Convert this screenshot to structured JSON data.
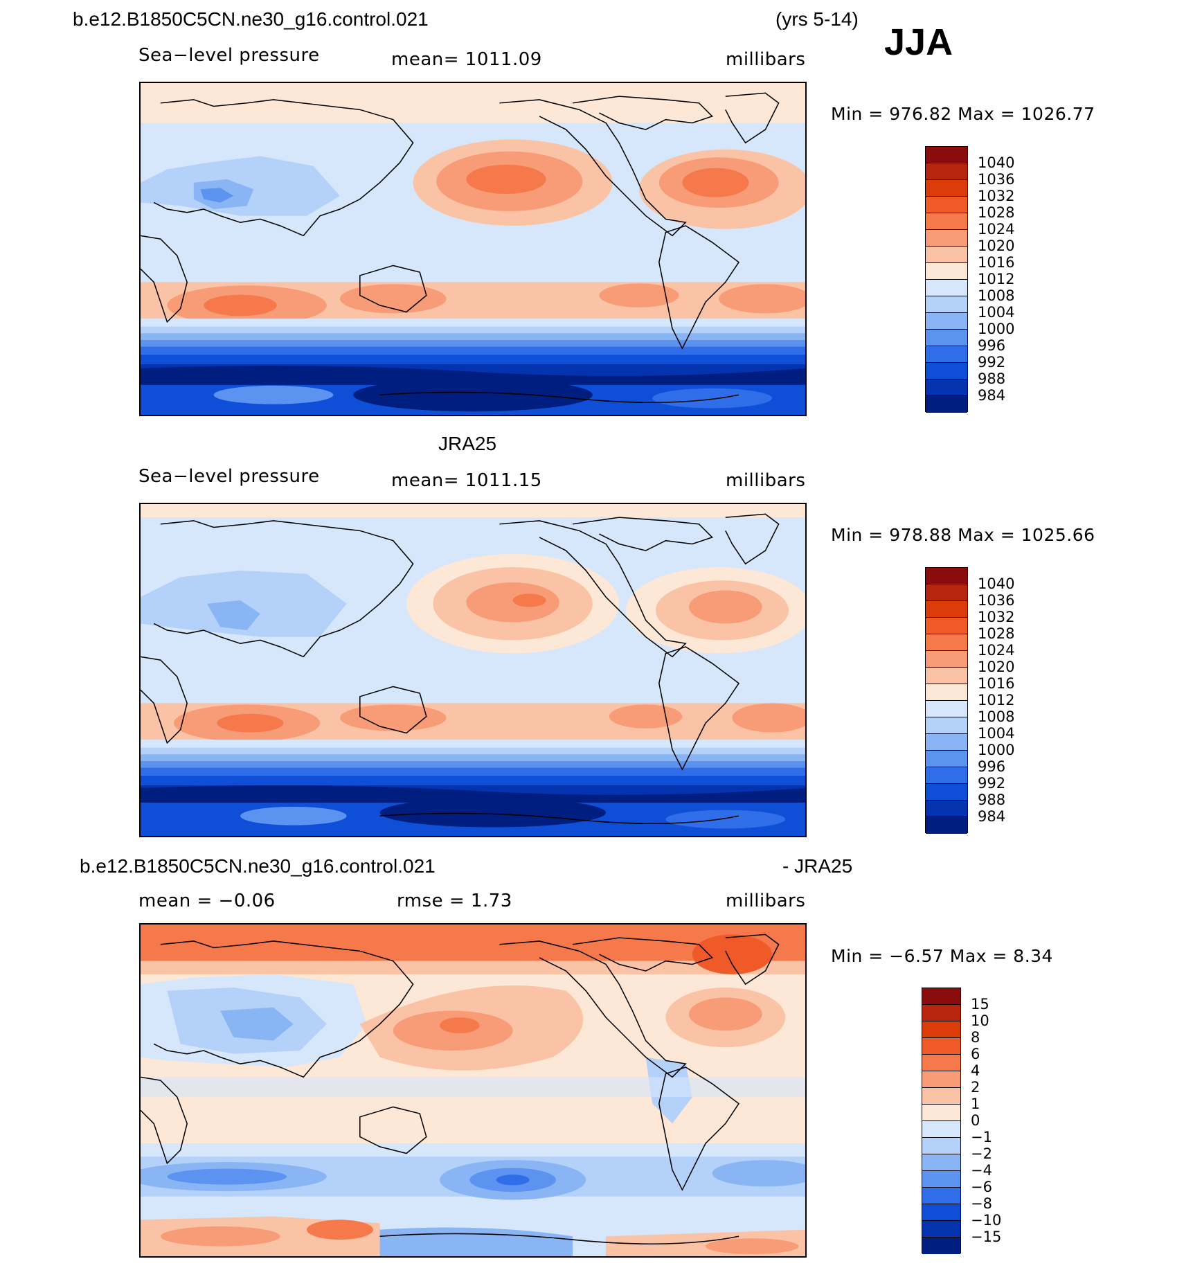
{
  "header": {
    "case_title": "b.e12.B1850C5CN.ne30_g16.control.021",
    "years": "(yrs 5-14)",
    "season": "JJA"
  },
  "panels": [
    {
      "id": "model",
      "left_label": "Sea−level pressure",
      "center_label": "mean=  1011.09",
      "units": "millibars",
      "minmax": "Min  =  976.82  Max  =  1026.77",
      "colorbar": {
        "labels": [
          "1040",
          "1036",
          "1032",
          "1028",
          "1024",
          "1020",
          "1016",
          "1012",
          "1008",
          "1004",
          "1000",
          "996",
          "992",
          "988",
          "984"
        ],
        "colors": [
          "#8b0c0c",
          "#b8250f",
          "#dc3b0a",
          "#f05a28",
          "#f5794b",
          "#f89c78",
          "#fbc3a5",
          "#fde7d6",
          "#d6e6fb",
          "#b4d1fa",
          "#8ab5f5",
          "#5c93f0",
          "#2f6ee8",
          "#0f4ed6",
          "#0433b0",
          "#001e80"
        ]
      }
    },
    {
      "id": "obs",
      "title": "JRA25",
      "left_label": "Sea−level pressure",
      "center_label": "mean=  1011.15",
      "units": "millibars",
      "minmax": "Min  =  978.88  Max  =  1025.66",
      "colorbar": {
        "labels": [
          "1040",
          "1036",
          "1032",
          "1028",
          "1024",
          "1020",
          "1016",
          "1012",
          "1008",
          "1004",
          "1000",
          "996",
          "992",
          "988",
          "984"
        ],
        "colors": [
          "#8b0c0c",
          "#b8250f",
          "#dc3b0a",
          "#f05a28",
          "#f5794b",
          "#f89c78",
          "#fbc3a5",
          "#fde7d6",
          "#d6e6fb",
          "#b4d1fa",
          "#8ab5f5",
          "#5c93f0",
          "#2f6ee8",
          "#0f4ed6",
          "#0433b0",
          "#001e80"
        ]
      }
    },
    {
      "id": "diff",
      "title_left": "b.e12.B1850C5CN.ne30_g16.control.021",
      "title_right": "- JRA25",
      "left_label": "mean  =    −0.06",
      "center_label": "rmse  =     1.73",
      "units": "millibars",
      "minmax": "Min  =    −6.57  Max  =      8.34",
      "colorbar": {
        "labels": [
          "15",
          "10",
          "8",
          "6",
          "4",
          "2",
          "1",
          "0",
          "−1",
          "−2",
          "−4",
          "−6",
          "−8",
          "−10",
          "−15"
        ],
        "colors": [
          "#8b0c0c",
          "#b8250f",
          "#dc3b0a",
          "#f05a28",
          "#f5794b",
          "#f89c78",
          "#fbc3a5",
          "#fde7d6",
          "#d6e6fb",
          "#b4d1fa",
          "#8ab5f5",
          "#5c93f0",
          "#2f6ee8",
          "#0f4ed6",
          "#0433b0",
          "#001e80"
        ]
      }
    }
  ]
}
